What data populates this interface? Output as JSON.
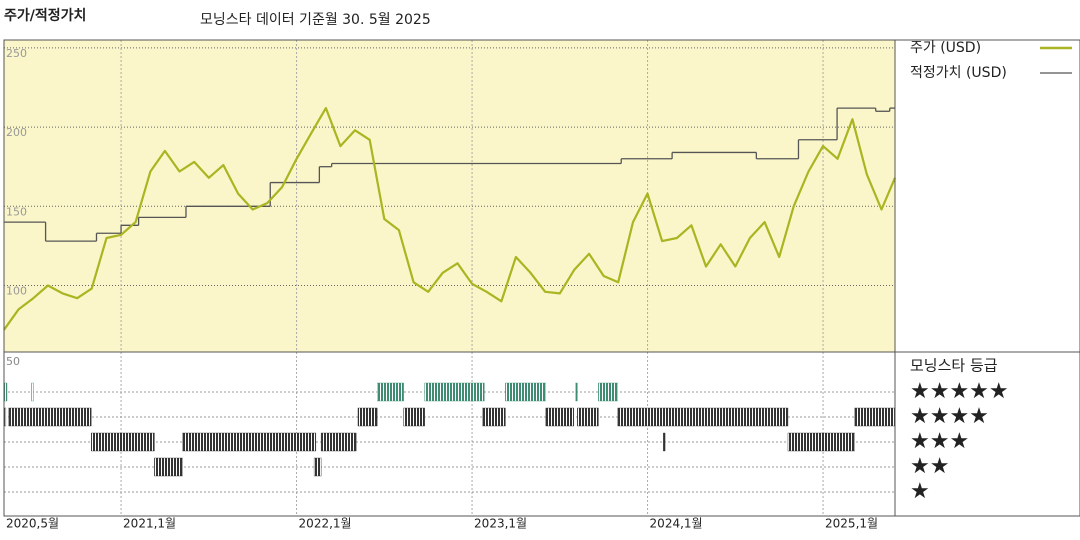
{
  "chart_data": {
    "type": "line",
    "title": "주가/적정가치",
    "subtitle": "모닝스타 데이터 기준월 30. 5월 2025",
    "xlim": [
      2020.333,
      2025.41
    ],
    "xticks": [
      {
        "value": 2020.333,
        "label": "2020,5월"
      },
      {
        "value": 2021.0,
        "label": "2021,1월"
      },
      {
        "value": 2022.0,
        "label": "2022,1월"
      },
      {
        "value": 2023.0,
        "label": "2023,1월"
      },
      {
        "value": 2024.0,
        "label": "2024,1월"
      },
      {
        "value": 2025.0,
        "label": "2025,1월"
      }
    ],
    "ylim": [
      58,
      255
    ],
    "yticks": [
      100,
      150,
      200,
      250
    ],
    "grid": true,
    "background": "#faf6c9",
    "series": [
      {
        "name": "주가 (USD)",
        "color": "#a9b521",
        "x": [
          2020.333,
          2020.417,
          2020.5,
          2020.583,
          2020.667,
          2020.75,
          2020.833,
          2020.917,
          2021.0,
          2021.083,
          2021.167,
          2021.25,
          2021.333,
          2021.417,
          2021.5,
          2021.583,
          2021.667,
          2021.75,
          2021.833,
          2021.917,
          2022.0,
          2022.083,
          2022.167,
          2022.25,
          2022.333,
          2022.417,
          2022.5,
          2022.583,
          2022.667,
          2022.75,
          2022.833,
          2022.917,
          2023.0,
          2023.083,
          2023.167,
          2023.25,
          2023.333,
          2023.417,
          2023.5,
          2023.583,
          2023.667,
          2023.75,
          2023.833,
          2023.917,
          2024.0,
          2024.083,
          2024.167,
          2024.25,
          2024.333,
          2024.417,
          2024.5,
          2024.583,
          2024.667,
          2024.75,
          2024.833,
          2024.917,
          2025.0,
          2025.083,
          2025.167,
          2025.25,
          2025.333,
          2025.41
        ],
        "values": [
          72,
          85,
          92,
          100,
          95,
          92,
          98,
          130,
          132,
          140,
          172,
          185,
          172,
          178,
          168,
          176,
          158,
          148,
          152,
          162,
          180,
          196,
          212,
          188,
          198,
          192,
          142,
          135,
          102,
          96,
          108,
          114,
          101,
          96,
          90,
          118,
          108,
          96,
          95,
          110,
          120,
          106,
          102,
          140,
          158,
          128,
          130,
          138,
          112,
          126,
          112,
          130,
          140,
          118,
          150,
          172,
          188,
          180,
          205,
          170,
          148,
          168
        ]
      },
      {
        "name": "적정가치 (USD)",
        "color": "#555555",
        "step": true,
        "x": [
          2020.333,
          2020.57,
          2020.86,
          2021.0,
          2021.1,
          2021.37,
          2021.85,
          2022.13,
          2022.2,
          2023.85,
          2024.14,
          2024.62,
          2024.86,
          2025.08,
          2025.3,
          2025.38
        ],
        "values": [
          140,
          128,
          133,
          138,
          143,
          150,
          165,
          175,
          177,
          180,
          184,
          180,
          192,
          212,
          210,
          212
        ]
      }
    ],
    "rating_title": "모닝스타 등급",
    "rating_panel_label": "50",
    "rating_labels": [
      "★★★★★",
      "★★★★",
      "★★★",
      "★★",
      "★"
    ],
    "rating_levels": [
      5,
      4,
      3,
      2,
      1
    ],
    "rating_colors": [
      "#3f8c72",
      "#333333",
      "#333333",
      "#333333",
      "#333333"
    ],
    "ratings": [
      {
        "stars": 5,
        "start": 2020.335,
        "end": 2020.35
      },
      {
        "stars": 5,
        "start": 2020.49,
        "end": 2020.5
      },
      {
        "stars": 5,
        "start": 2022.46,
        "end": 2022.61
      },
      {
        "stars": 5,
        "start": 2022.73,
        "end": 2023.07
      },
      {
        "stars": 5,
        "start": 2023.19,
        "end": 2023.42
      },
      {
        "stars": 5,
        "start": 2023.59,
        "end": 2023.6
      },
      {
        "stars": 5,
        "start": 2023.72,
        "end": 2023.83
      },
      {
        "stars": 4,
        "start": 2020.335,
        "end": 2020.34
      },
      {
        "stars": 4,
        "start": 2020.36,
        "end": 2020.83
      },
      {
        "stars": 4,
        "start": 2022.35,
        "end": 2022.46
      },
      {
        "stars": 4,
        "start": 2022.61,
        "end": 2022.73
      },
      {
        "stars": 4,
        "start": 2023.06,
        "end": 2023.19
      },
      {
        "stars": 4,
        "start": 2023.42,
        "end": 2023.58
      },
      {
        "stars": 4,
        "start": 2023.6,
        "end": 2023.72
      },
      {
        "stars": 4,
        "start": 2023.83,
        "end": 2024.8
      },
      {
        "stars": 4,
        "start": 2025.18,
        "end": 2025.41
      },
      {
        "stars": 3,
        "start": 2020.83,
        "end": 2021.19
      },
      {
        "stars": 3,
        "start": 2021.35,
        "end": 2022.11
      },
      {
        "stars": 3,
        "start": 2022.14,
        "end": 2022.34
      },
      {
        "stars": 3,
        "start": 2024.09,
        "end": 2024.1
      },
      {
        "stars": 3,
        "start": 2024.8,
        "end": 2025.18
      },
      {
        "stars": 2,
        "start": 2021.19,
        "end": 2021.35
      },
      {
        "stars": 2,
        "start": 2022.1,
        "end": 2022.14
      }
    ]
  }
}
